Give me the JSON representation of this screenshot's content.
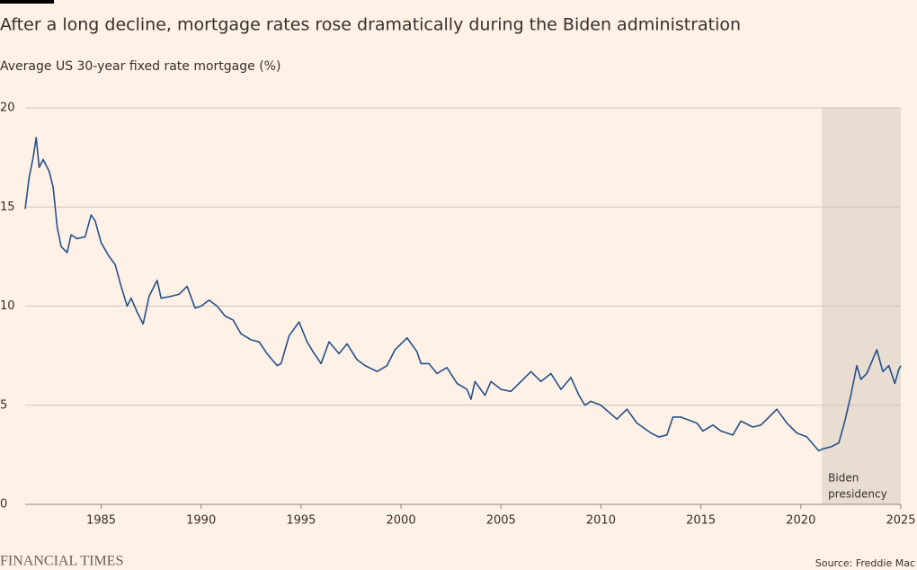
{
  "chart_data": {
    "type": "line",
    "title": "After a long decline, mortgage rates rose dramatically during the Biden administration",
    "subtitle": "Average US 30-year fixed rate mortgage (%)",
    "x": [
      1981.2,
      1981.4,
      1981.6,
      1981.75,
      1981.9,
      1982.1,
      1982.4,
      1982.6,
      1982.8,
      1983.0,
      1983.3,
      1983.5,
      1983.8,
      1984.2,
      1984.5,
      1984.7,
      1985.0,
      1985.4,
      1985.7,
      1986.0,
      1986.3,
      1986.5,
      1986.8,
      1987.1,
      1987.4,
      1987.8,
      1988.0,
      1988.5,
      1988.9,
      1989.3,
      1989.7,
      1990.0,
      1990.4,
      1990.8,
      1991.2,
      1991.6,
      1992.0,
      1992.5,
      1992.9,
      1993.3,
      1993.8,
      1994.0,
      1994.4,
      1994.9,
      1995.3,
      1995.6,
      1996.0,
      1996.4,
      1996.9,
      1997.3,
      1997.8,
      1998.2,
      1998.8,
      1999.3,
      1999.7,
      2000.3,
      2000.8,
      2001.0,
      2001.4,
      2001.8,
      2002.3,
      2002.8,
      2003.3,
      2003.5,
      2003.7,
      2004.2,
      2004.5,
      2005.0,
      2005.5,
      2006.0,
      2006.5,
      2007.0,
      2007.5,
      2008.0,
      2008.5,
      2008.9,
      2009.2,
      2009.5,
      2010.0,
      2010.8,
      2011.3,
      2011.8,
      2012.5,
      2012.9,
      2013.3,
      2013.6,
      2014.0,
      2014.8,
      2015.1,
      2015.6,
      2016.0,
      2016.6,
      2017.0,
      2017.6,
      2018.0,
      2018.8,
      2019.3,
      2019.8,
      2020.3,
      2020.9,
      2021.1,
      2021.5,
      2021.9,
      2022.2,
      2022.5,
      2022.8,
      2023.0,
      2023.3,
      2023.8,
      2024.1,
      2024.4,
      2024.7,
      2024.9,
      2025.0
    ],
    "series": [
      {
        "name": "Average US 30-year fixed rate mortgage",
        "color": "#24508c",
        "values": [
          14.9,
          16.5,
          17.5,
          18.5,
          17.0,
          17.4,
          16.8,
          16.0,
          14.0,
          13.0,
          12.7,
          13.6,
          13.4,
          13.5,
          14.6,
          14.3,
          13.2,
          12.5,
          12.1,
          11.0,
          10.0,
          10.4,
          9.7,
          9.1,
          10.5,
          11.3,
          10.4,
          10.5,
          10.6,
          11.0,
          9.9,
          10.0,
          10.3,
          10.0,
          9.5,
          9.3,
          8.6,
          8.3,
          8.2,
          7.6,
          7.0,
          7.1,
          8.5,
          9.2,
          8.2,
          7.7,
          7.1,
          8.2,
          7.6,
          8.1,
          7.3,
          7.0,
          6.7,
          7.0,
          7.8,
          8.4,
          7.7,
          7.1,
          7.1,
          6.6,
          6.9,
          6.1,
          5.8,
          5.3,
          6.2,
          5.5,
          6.2,
          5.8,
          5.7,
          6.2,
          6.7,
          6.2,
          6.6,
          5.8,
          6.4,
          5.5,
          5.0,
          5.2,
          5.0,
          4.3,
          4.8,
          4.1,
          3.6,
          3.4,
          3.5,
          4.4,
          4.4,
          4.1,
          3.7,
          4.0,
          3.7,
          3.5,
          4.2,
          3.9,
          4.0,
          4.8,
          4.1,
          3.6,
          3.4,
          2.7,
          2.8,
          2.9,
          3.1,
          4.2,
          5.5,
          7.0,
          6.3,
          6.6,
          7.8,
          6.7,
          7.0,
          6.1,
          6.8,
          7.0
        ]
      }
    ],
    "xlim": [
      1981.2,
      2025
    ],
    "xticks": [
      1985,
      1990,
      1995,
      2000,
      2005,
      2010,
      2015,
      2020,
      2025
    ],
    "ylim": [
      0,
      20
    ],
    "yticks": [
      0,
      5,
      10,
      15,
      20
    ],
    "grid": true,
    "shaded_region": {
      "xlim": [
        2021.05,
        2025
      ],
      "color": "#e9ddd2"
    },
    "annotation": [
      "Biden",
      "presidency"
    ],
    "source": "Source: Freddie Mac",
    "logo": "FINANCIAL TIMES"
  }
}
